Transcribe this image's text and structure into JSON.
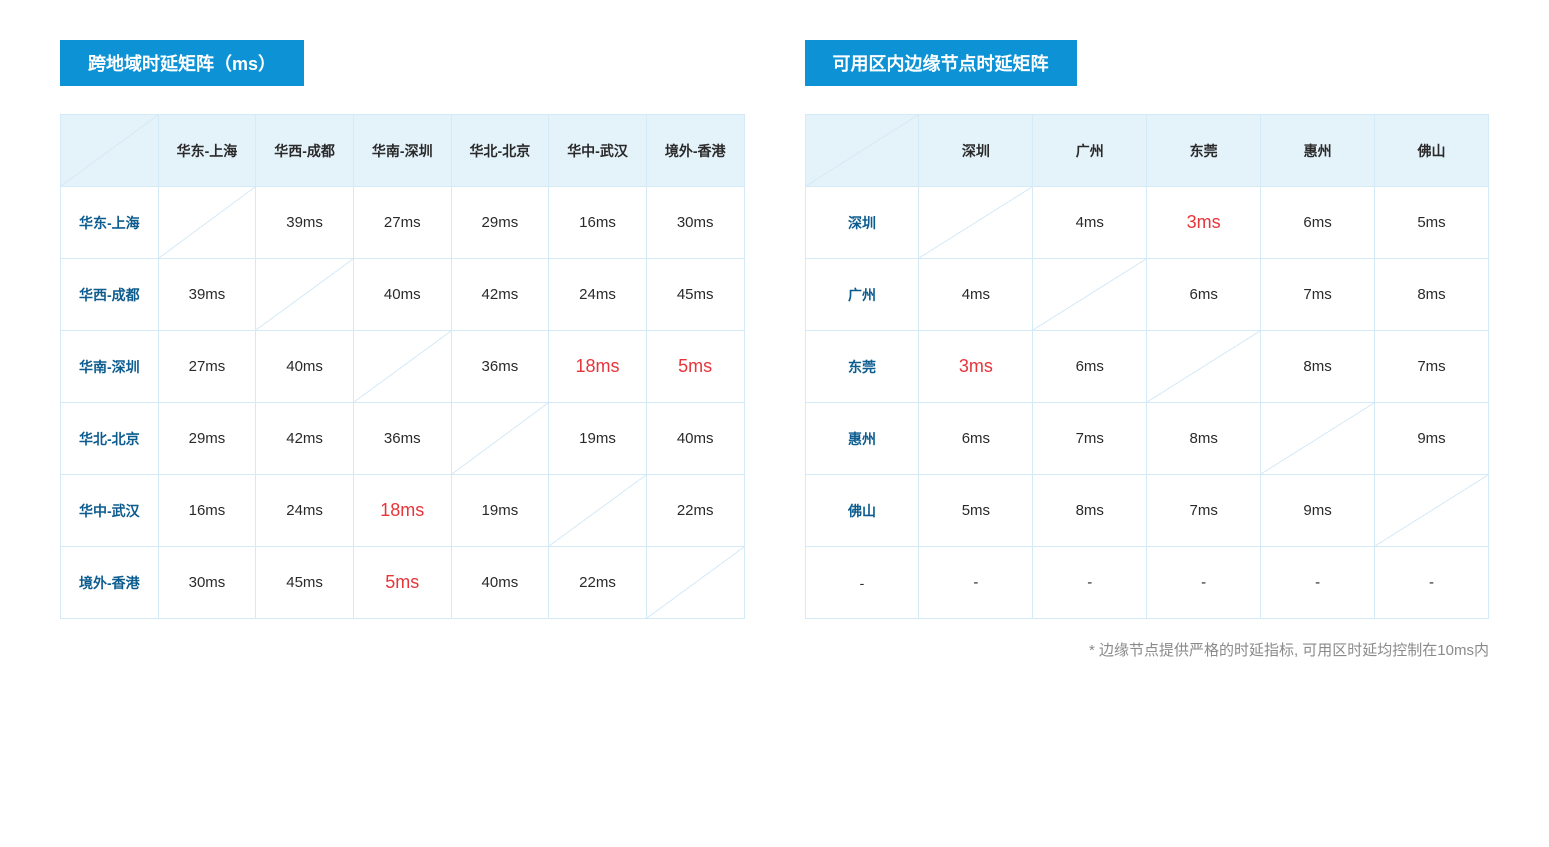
{
  "colors": {
    "title_bg": "#0d92d5",
    "title_text": "#ffffff",
    "header_bg": "#e4f2fa",
    "header_text": "#2a2a2a",
    "row_header_text": "#0d5c8f",
    "cell_bg": "#ffffff",
    "cell_text": "#2a2a2a",
    "border": "#d4eaf6",
    "highlight": "#e6353a",
    "footnote_text": "#8a8a8a"
  },
  "left_table": {
    "title": "跨地域时延矩阵（ms）",
    "columns": [
      "华东-上海",
      "华西-成都",
      "华南-深圳",
      "华北-北京",
      "华中-武汉",
      "境外-香港"
    ],
    "rows": [
      "华东-上海",
      "华西-成都",
      "华南-深圳",
      "华北-北京",
      "华中-武汉",
      "境外-香港"
    ],
    "data": [
      [
        "",
        "39ms",
        "27ms",
        "29ms",
        "16ms",
        "30ms"
      ],
      [
        "39ms",
        "",
        "40ms",
        "42ms",
        "24ms",
        "45ms"
      ],
      [
        "27ms",
        "40ms",
        "",
        "36ms",
        "18ms",
        "5ms"
      ],
      [
        "29ms",
        "42ms",
        "36ms",
        "",
        "19ms",
        "40ms"
      ],
      [
        "16ms",
        "24ms",
        "18ms",
        "19ms",
        "",
        "22ms"
      ],
      [
        "30ms",
        "45ms",
        "5ms",
        "40ms",
        "22ms",
        ""
      ]
    ],
    "highlights": [
      [
        2,
        4
      ],
      [
        2,
        5
      ],
      [
        4,
        2
      ],
      [
        5,
        2
      ]
    ]
  },
  "right_table": {
    "title": "可用区内边缘节点时延矩阵",
    "columns": [
      "深圳",
      "广州",
      "东莞",
      "惠州",
      "佛山"
    ],
    "rows": [
      "深圳",
      "广州",
      "东莞",
      "惠州",
      "佛山",
      "-"
    ],
    "data": [
      [
        "",
        "4ms",
        "3ms",
        "6ms",
        "5ms"
      ],
      [
        "4ms",
        "",
        "6ms",
        "7ms",
        "8ms"
      ],
      [
        "3ms",
        "6ms",
        "",
        "8ms",
        "7ms"
      ],
      [
        "6ms",
        "7ms",
        "8ms",
        "",
        "9ms"
      ],
      [
        "5ms",
        "8ms",
        "7ms",
        "9ms",
        ""
      ],
      [
        "-",
        "-",
        "-",
        "-",
        "-"
      ]
    ],
    "highlights": [
      [
        0,
        2
      ],
      [
        2,
        0
      ]
    ],
    "last_row_dash": true
  },
  "footnote": "* 边缘节点提供严格的时延指标, 可用区时延均控制在10ms内"
}
